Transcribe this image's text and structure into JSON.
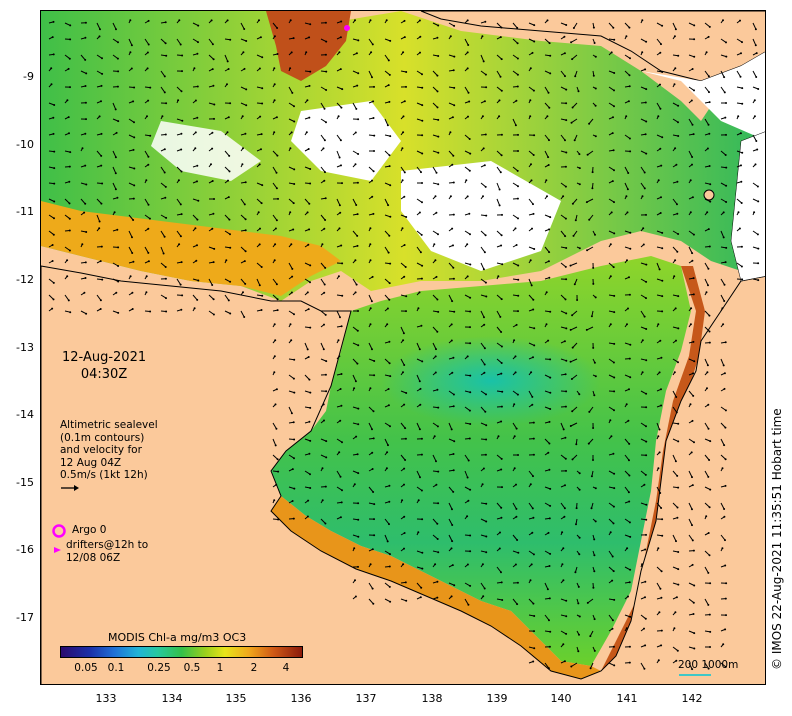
{
  "map": {
    "date": "12-Aug-2021",
    "time": "04:30Z",
    "legend_lines": [
      "Altimetric sealevel",
      "(0.1m contours)",
      "and velocity for",
      "12 Aug 04Z",
      "0.5m/s (1kt 12h)"
    ],
    "argo_label": "Argo 0",
    "drifter_lines": [
      "drifters@12h to",
      "12/08 06Z"
    ],
    "colorbar_title": "MODIS Chl-a mg/m3 OC3",
    "colorbar_ticks": [
      "0.05",
      "0.1",
      "0.25",
      "0.5",
      "1",
      "2",
      "4"
    ],
    "scale_label": "200  1000m",
    "credit": "© IMOS 22-Aug-2021 11:35:51 Hobart time",
    "y_ticks": [
      "-9",
      "-10",
      "-11",
      "-12",
      "-13",
      "-14",
      "-15",
      "-16",
      "-17"
    ],
    "x_ticks": [
      "133",
      "134",
      "135",
      "136",
      "137",
      "138",
      "139",
      "140",
      "141",
      "142"
    ],
    "colors": {
      "land": "#fbc99b",
      "chl_low": "#1fb5a0",
      "chl_mid": "#7fd12a",
      "chl_high": "#e89a12",
      "chl_max": "#b8460d",
      "argo": "#ff00ff",
      "scale_bar": "#3fc7c7"
    }
  }
}
